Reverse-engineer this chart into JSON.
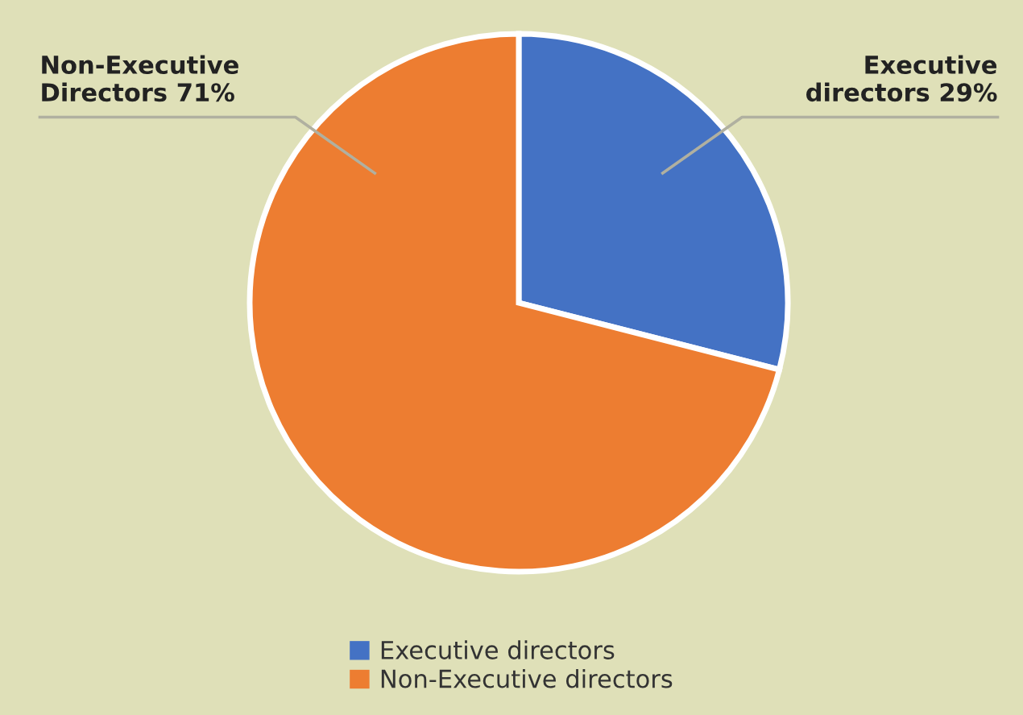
{
  "chart_data": {
    "type": "pie",
    "categories": [
      "Executive directors",
      "Non-Executive directors"
    ],
    "values": [
      29,
      71
    ],
    "colors": [
      "#4472c4",
      "#ed7d31"
    ],
    "value_labels": [
      "Executive\ndirectors 29%",
      "Non-Executive\nDirectors 71%"
    ],
    "legend": "bottom"
  }
}
